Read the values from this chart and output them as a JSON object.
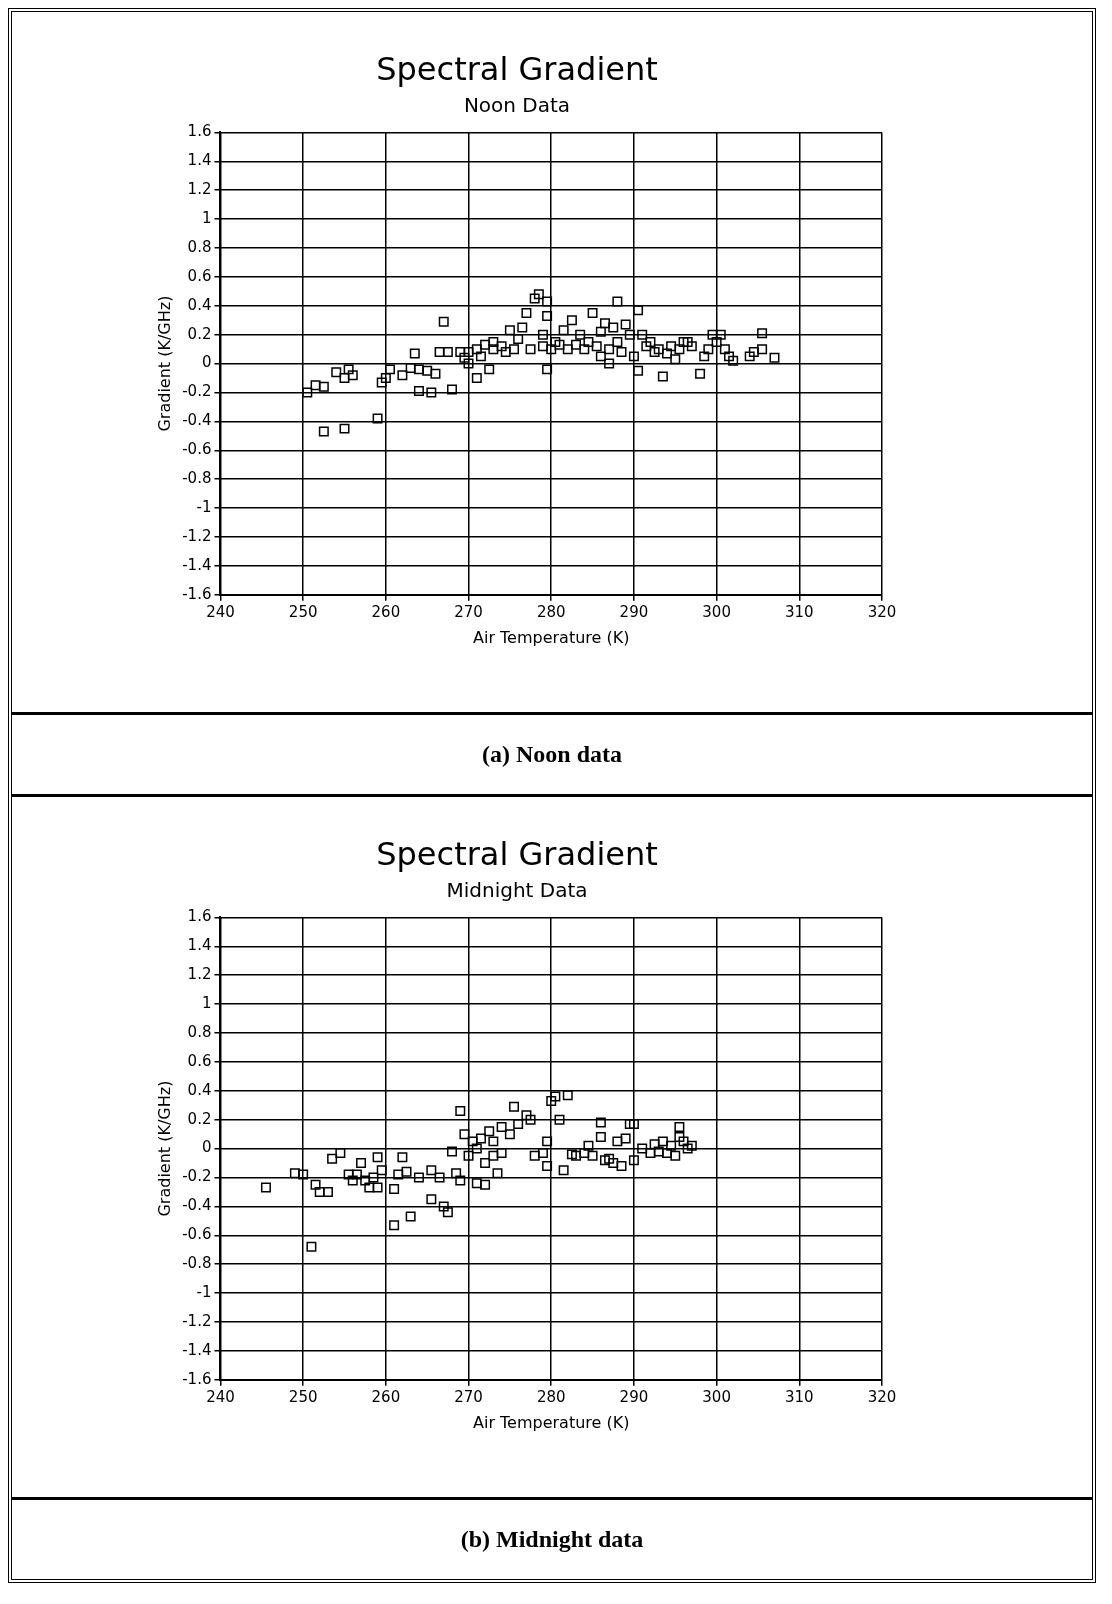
{
  "chart_data": [
    {
      "type": "scatter",
      "title": "Spectral Gradient",
      "subtitle": "Noon Data",
      "xlabel": "Air Temperature (K)",
      "ylabel": "Gradient (K/GHz)",
      "annotations": [
        "(a) Noon data"
      ],
      "xlim": [
        240,
        320
      ],
      "xticks": [
        240,
        250,
        260,
        270,
        280,
        290,
        300,
        310,
        320
      ],
      "ylim": [
        -1.6,
        1.6
      ],
      "yticks": [
        -1.6,
        -1.4,
        -1.2,
        -1,
        -0.8,
        -0.6,
        -0.4,
        -0.2,
        0,
        0.2,
        0.4,
        0.6,
        0.8,
        1,
        1.2,
        1.4,
        1.6
      ],
      "grid": true,
      "marker": "square",
      "series": [
        {
          "color": "#000000",
          "x": [
            250.5,
            251.5,
            252.5,
            252.5,
            254,
            255,
            255,
            255.5,
            256,
            259,
            259.5,
            260,
            260.5,
            262,
            263,
            263.5,
            264,
            264,
            265,
            265.5,
            266,
            266.5,
            267,
            267.5,
            268,
            269,
            269.5,
            270,
            270,
            271,
            271,
            271.5,
            272,
            272.5,
            273,
            273,
            274,
            274.5,
            275,
            275.5,
            276,
            276.5,
            277,
            277.5,
            278,
            278.5,
            279,
            279,
            279.5,
            279.5,
            279.5,
            280,
            280.5,
            281,
            281.5,
            282,
            282.5,
            283,
            283.5,
            284,
            284.5,
            285,
            285.5,
            286,
            286,
            286.5,
            287,
            287,
            287.5,
            288,
            288,
            288.5,
            289,
            289.5,
            290,
            290.5,
            290.5,
            291,
            291.5,
            292,
            292.5,
            293,
            293.5,
            294,
            294.5,
            295,
            295.5,
            296,
            296.5,
            297,
            298,
            298.5,
            299,
            299.5,
            300,
            300.5,
            301,
            301.5,
            302,
            304,
            304.5,
            305.5,
            305.5,
            307
          ],
          "values": [
            -0.2,
            -0.15,
            -0.16,
            -0.47,
            -0.06,
            -0.45,
            -0.1,
            -0.04,
            -0.08,
            -0.38,
            -0.13,
            -0.1,
            -0.04,
            -0.08,
            -0.03,
            0.07,
            -0.19,
            -0.04,
            -0.05,
            -0.2,
            -0.07,
            0.08,
            0.29,
            0.08,
            -0.18,
            0.08,
            0.04,
            0,
            0.08,
            -0.1,
            0.1,
            0.05,
            0.13,
            -0.04,
            0.15,
            0.1,
            0.12,
            0.08,
            0.23,
            0.1,
            0.17,
            0.25,
            0.35,
            0.1,
            0.45,
            0.48,
            0.12,
            0.2,
            0.43,
            0.33,
            -0.04,
            0.1,
            0.15,
            0.13,
            0.23,
            0.1,
            0.3,
            0.13,
            0.2,
            0.1,
            0.15,
            0.35,
            0.12,
            0.22,
            0.05,
            0.28,
            0,
            0.1,
            0.25,
            0.43,
            0.15,
            0.08,
            0.27,
            0.2,
            0.05,
            0.37,
            -0.05,
            0.2,
            0.12,
            0.15,
            0.08,
            0.1,
            -0.09,
            0.07,
            0.12,
            0.03,
            0.1,
            0.15,
            0.15,
            0.12,
            -0.07,
            0.05,
            0.1,
            0.2,
            0.15,
            0.2,
            0.1,
            0.05,
            0.02,
            0.05,
            0.08,
            0.21,
            0.1,
            0.04
          ]
        }
      ]
    },
    {
      "type": "scatter",
      "title": "Spectral Gradient",
      "subtitle": "Midnight Data",
      "xlabel": "Air Temperature (K)",
      "ylabel": "Gradient (K/GHz)",
      "annotations": [
        "(b) Midnight data"
      ],
      "xlim": [
        240,
        320
      ],
      "xticks": [
        240,
        250,
        260,
        270,
        280,
        290,
        300,
        310,
        320
      ],
      "ylim": [
        -1.6,
        1.6
      ],
      "yticks": [
        -1.6,
        -1.4,
        -1.2,
        -1,
        -0.8,
        -0.6,
        -0.4,
        -0.2,
        0,
        0.2,
        0.4,
        0.6,
        0.8,
        1,
        1.2,
        1.4,
        1.6
      ],
      "grid": true,
      "marker": "square",
      "series": [
        {
          "color": "#000000",
          "x": [
            245.5,
            249,
            250,
            251,
            251.5,
            252,
            253,
            253.5,
            254.5,
            255.5,
            256,
            256.5,
            257,
            257.5,
            258,
            258.5,
            259,
            259,
            259.5,
            261,
            261,
            261.5,
            262,
            262.5,
            263,
            264,
            265.5,
            265.5,
            266.5,
            267,
            267.5,
            268,
            268.5,
            269,
            269,
            269.5,
            270,
            270.5,
            271,
            271,
            271.5,
            272,
            272,
            272.5,
            273,
            273,
            273.5,
            274,
            274,
            275,
            275.5,
            276,
            277,
            277.5,
            278,
            279,
            279.5,
            279.5,
            280,
            280.5,
            281,
            281.5,
            282,
            282.5,
            283,
            284,
            284.5,
            285,
            286,
            286,
            286.5,
            287,
            287.5,
            288,
            288.5,
            289,
            289.5,
            290,
            290,
            291,
            292,
            292.5,
            293,
            293.5,
            294,
            294.5,
            295,
            295.5,
            295.5,
            296,
            296.5,
            297
          ],
          "values": [
            -0.27,
            -0.17,
            -0.18,
            -0.68,
            -0.25,
            -0.3,
            -0.3,
            -0.07,
            -0.03,
            -0.18,
            -0.22,
            -0.18,
            -0.1,
            -0.22,
            -0.27,
            -0.2,
            -0.27,
            -0.06,
            -0.15,
            -0.28,
            -0.53,
            -0.18,
            -0.06,
            -0.16,
            -0.47,
            -0.2,
            -0.15,
            -0.35,
            -0.2,
            -0.4,
            -0.44,
            -0.02,
            -0.17,
            0.26,
            -0.22,
            0.1,
            -0.05,
            0.05,
            -0.24,
            0,
            0.07,
            -0.1,
            -0.25,
            0.12,
            0.05,
            -0.05,
            -0.17,
            0.15,
            -0.03,
            0.1,
            0.29,
            0.17,
            0.23,
            0.2,
            -0.05,
            -0.03,
            0.05,
            -0.12,
            0.33,
            0.36,
            0.2,
            -0.15,
            0.37,
            -0.04,
            -0.05,
            -0.03,
            0.02,
            -0.05,
            0.18,
            0.08,
            -0.08,
            -0.07,
            -0.1,
            0.05,
            -0.12,
            0.07,
            0.17,
            0.17,
            -0.08,
            0,
            -0.03,
            0.03,
            -0.02,
            0.05,
            -0.03,
            0.02,
            -0.05,
            0.15,
            0.08,
            0.05,
            0,
            0.02
          ]
        }
      ]
    }
  ]
}
